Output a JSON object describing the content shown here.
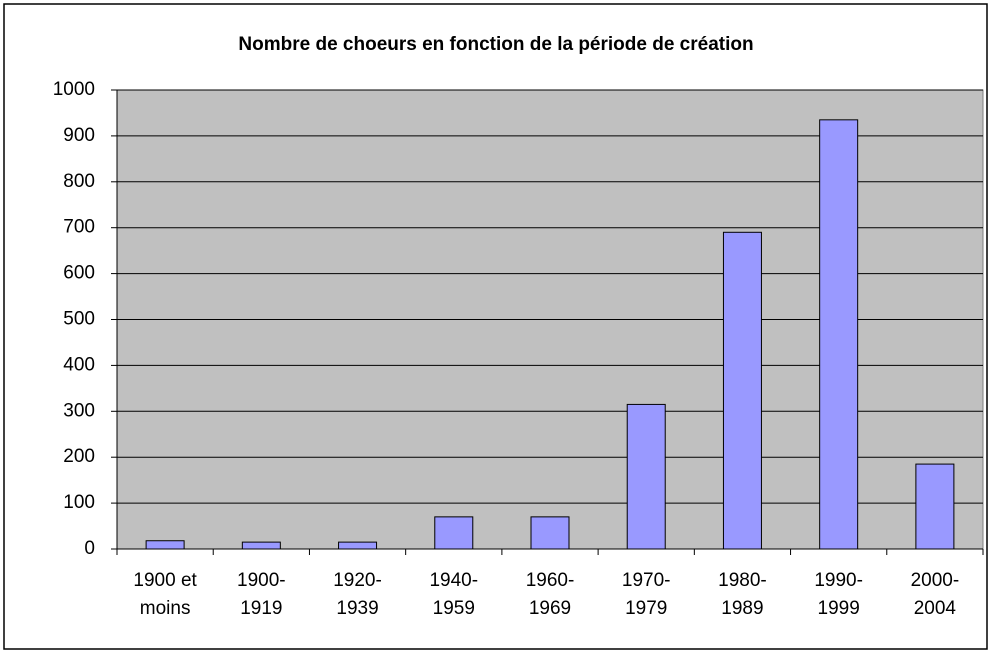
{
  "chart_data": {
    "type": "bar",
    "title": "Nombre de choeurs en fonction de la période de création",
    "categories": [
      "1900 et moins",
      "1900-1919",
      "1920-1939",
      "1940-1959",
      "1960-1969",
      "1970-1979",
      "1980-1989",
      "1990-1999",
      "2000-2004"
    ],
    "values": [
      18,
      15,
      15,
      70,
      70,
      315,
      690,
      935,
      185
    ],
    "color": "#9999ff",
    "plot_background": "#c0c0c0",
    "ylim": [
      0,
      1000
    ],
    "yticks": [
      0,
      100,
      200,
      300,
      400,
      500,
      600,
      700,
      800,
      900,
      1000
    ],
    "grid": true
  }
}
